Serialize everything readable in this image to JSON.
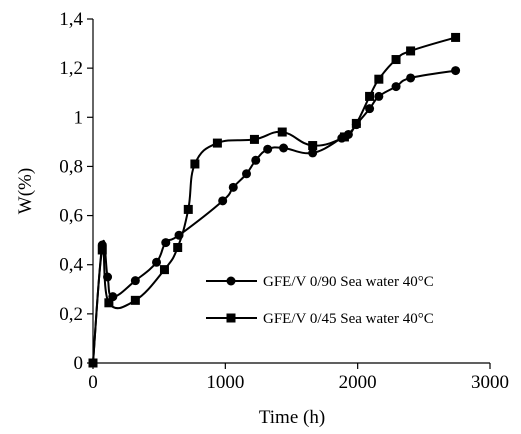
{
  "chart_data": {
    "type": "line",
    "xlabel": "Time (h)",
    "ylabel": "W(%)",
    "xlim": [
      0,
      3000
    ],
    "ylim": [
      0,
      1.4
    ],
    "x_ticks": [
      0,
      1000,
      2000,
      3000
    ],
    "y_ticks": [
      0,
      0.2,
      0.4,
      0.6,
      0.8,
      1.0,
      1.2,
      1.4
    ],
    "x_tick_labels": [
      "0",
      "1000",
      "2000",
      "3000"
    ],
    "y_tick_labels": [
      "0",
      "0,2",
      "0,4",
      "0,6",
      "0,8",
      "1",
      "1,2",
      "1,4"
    ],
    "grid": false,
    "legend_position": "bottom-right",
    "series": [
      {
        "name": "GFE/V 0/90 Sea water 40°C",
        "marker": "circle",
        "color": "#000000",
        "x": [
          0,
          70,
          110,
          150,
          320,
          480,
          550,
          650,
          980,
          1060,
          1160,
          1230,
          1320,
          1440,
          1660,
          1880,
          1930,
          1990,
          2090,
          2160,
          2290,
          2400,
          2740
        ],
        "y": [
          0,
          0.48,
          0.35,
          0.27,
          0.335,
          0.41,
          0.49,
          0.52,
          0.66,
          0.715,
          0.77,
          0.825,
          0.87,
          0.875,
          0.855,
          0.915,
          0.93,
          0.97,
          1.035,
          1.085,
          1.125,
          1.16,
          1.19
        ]
      },
      {
        "name": "GFE/V 0/45 Sea water 40°C",
        "marker": "square",
        "color": "#000000",
        "x": [
          0,
          70,
          120,
          320,
          540,
          640,
          720,
          770,
          940,
          1220,
          1430,
          1660,
          1900,
          1990,
          2090,
          2160,
          2290,
          2400,
          2740
        ],
        "y": [
          0,
          0.46,
          0.245,
          0.255,
          0.38,
          0.47,
          0.625,
          0.81,
          0.895,
          0.91,
          0.94,
          0.885,
          0.92,
          0.975,
          1.085,
          1.155,
          1.235,
          1.27,
          1.325
        ]
      }
    ]
  }
}
